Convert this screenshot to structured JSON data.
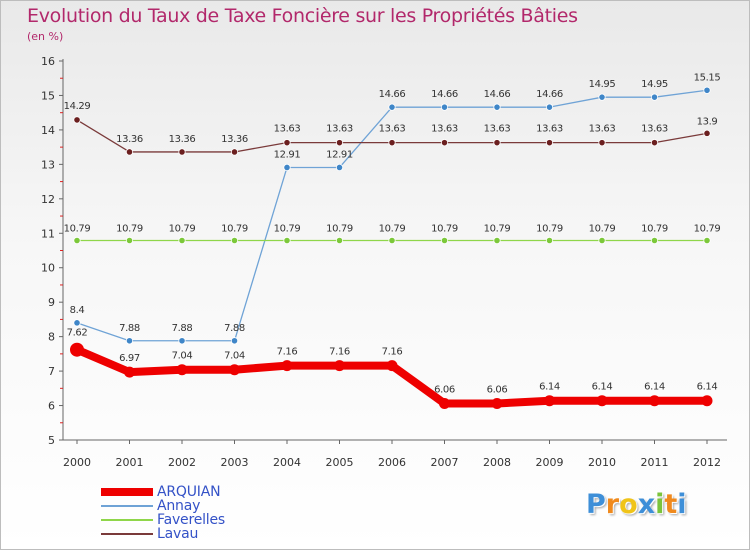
{
  "chart_data": {
    "type": "line",
    "title": "Evolution du Taux de Taxe Foncière sur les Propriétés Bâties",
    "ylabel": "(en %)",
    "xlabel": "",
    "ylim": [
      5,
      16
    ],
    "yticks": [
      "5",
      "6",
      "7",
      "8",
      "9",
      "10",
      "11",
      "12",
      "13",
      "14",
      "15",
      "16"
    ],
    "categories": [
      "2000",
      "2001",
      "2002",
      "2003",
      "2004",
      "2005",
      "2006",
      "2007",
      "2008",
      "2009",
      "2010",
      "2011",
      "2012"
    ],
    "series": [
      {
        "name": "ARQUIAN",
        "color": "#ee0000",
        "values": [
          7.62,
          6.97,
          7.04,
          7.04,
          7.16,
          7.16,
          7.16,
          6.06,
          6.06,
          6.14,
          6.14,
          6.14,
          6.14
        ],
        "labels": [
          "7.62",
          "6.97",
          "7.04",
          "7.04",
          "7.16",
          "7.16",
          "7.16",
          "6.06",
          "6.06",
          "6.14",
          "6.14",
          "6.14",
          "6.14"
        ]
      },
      {
        "name": "Annay",
        "color": "#6fa3d6",
        "marker": "#3f86c8",
        "values": [
          8.4,
          7.88,
          7.88,
          7.88,
          12.91,
          12.91,
          14.66,
          14.66,
          14.66,
          14.66,
          14.95,
          14.95,
          15.15
        ],
        "labels": [
          "8.4",
          "7.88",
          "7.88",
          "7.88",
          "12.91",
          "12.91",
          "14.66",
          "14.66",
          "14.66",
          "14.66",
          "14.95",
          "14.95",
          "15.15"
        ]
      },
      {
        "name": "Faverelles",
        "color": "#8fd64a",
        "marker": "#7cc83a",
        "values": [
          10.79,
          10.79,
          10.79,
          10.79,
          10.79,
          10.79,
          10.79,
          10.79,
          10.79,
          10.79,
          10.79,
          10.79,
          10.79
        ],
        "labels": [
          "10.79",
          "10.79",
          "10.79",
          "10.79",
          "10.79",
          "10.79",
          "10.79",
          "10.79",
          "10.79",
          "10.79",
          "10.79",
          "10.79",
          "10.79"
        ]
      },
      {
        "name": "Lavau",
        "color": "#7a3a3a",
        "marker": "#6b1f1f",
        "values": [
          14.29,
          13.36,
          13.36,
          13.36,
          13.63,
          13.63,
          13.63,
          13.63,
          13.63,
          13.63,
          13.63,
          13.63,
          13.9
        ],
        "labels": [
          "14.29",
          "13.36",
          "13.36",
          "13.36",
          "13.63",
          "13.63",
          "13.63",
          "13.63",
          "13.63",
          "13.63",
          "13.63",
          "13.63",
          "13.9"
        ]
      }
    ],
    "legend": [
      "ARQUIAN",
      "Annay",
      "Faverelles",
      "Lavau"
    ],
    "legend_position": "bottom-left",
    "grid": false
  },
  "brand": {
    "letters": [
      "P",
      "r",
      "o",
      "x",
      "i",
      "t",
      "i"
    ],
    "colors": [
      "#3e8fd8",
      "#f08a1d",
      "#f0c419",
      "#3e8fd8",
      "#7bc43c",
      "#f08a1d",
      "#3e8fd8"
    ]
  }
}
